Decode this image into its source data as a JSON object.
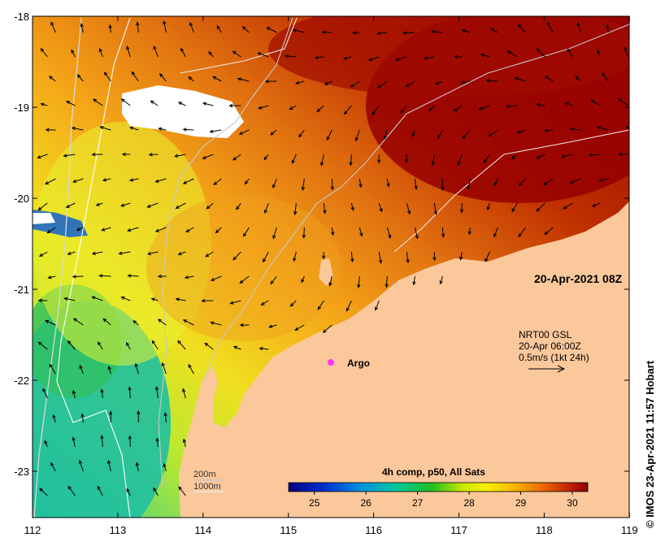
{
  "map": {
    "lon_ticks": [
      "112",
      "113",
      "114",
      "115",
      "116",
      "117",
      "118",
      "119"
    ],
    "lat_ticks": [
      "-18",
      "-19",
      "-20",
      "-21",
      "-22",
      "-23"
    ],
    "date_label": "20-Apr-2021 08Z",
    "current_box": {
      "line1": "NRT00 GSL",
      "line2": "20-Apr 06:00Z",
      "line3": "0.5m/s (1kt 24h)"
    },
    "argo": {
      "label": "Argo",
      "color": "#ff33ff"
    },
    "depth_legend": {
      "shallow": "200m",
      "deep": "1000m"
    },
    "colorbar": {
      "title": "4h comp, p50, All Sats",
      "ticks": [
        "25",
        "26",
        "27",
        "28",
        "29",
        "30"
      ],
      "min": 24.5,
      "max": 30.3
    },
    "credit": "© IMOS 23-Apr-2021 11:57 Hobart",
    "colors": {
      "land": "#fbc89b",
      "cloud": "#ffffff",
      "warm": "#9a0000",
      "mid": "#f59a10",
      "cool": "#e0f020",
      "cold": "#1cc4a0",
      "isobath": "#d8d8d8"
    }
  }
}
